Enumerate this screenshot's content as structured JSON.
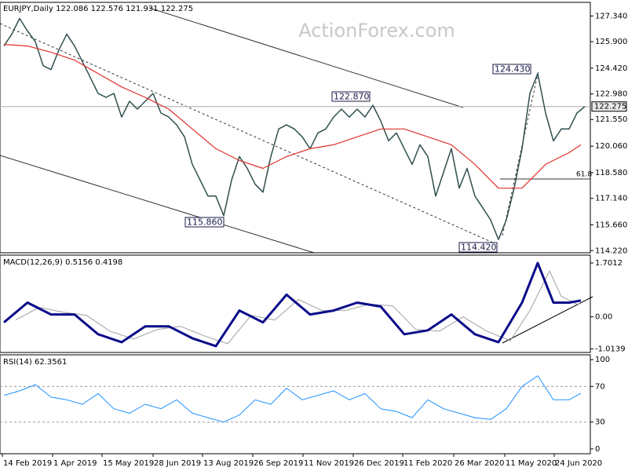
{
  "header": "EURJPY,Daily  122.086 122.576 121.931 122.275",
  "watermark": "ActionForex.com",
  "annotations": [
    "115.860",
    "122.870",
    "124.430",
    "114.420",
    "61.8"
  ],
  "x_axis": {
    "xlim": [
      -0.5,
      74.7
    ],
    "xticks": [
      {
        "value": -0.2,
        "label": "14 Feb 2019"
      },
      {
        "value": 6.2,
        "label": "1 Apr 2019"
      },
      {
        "value": 12.5,
        "label": "15 May 2019"
      },
      {
        "value": 19,
        "label": "28 Jun 2019"
      },
      {
        "value": 25.3,
        "label": "13 Aug 2019"
      },
      {
        "value": 31.7,
        "label": "26 Sep 2019"
      },
      {
        "value": 38.1,
        "label": "11 Nov 2019"
      },
      {
        "value": 44.5,
        "label": "26 Dec 2019"
      },
      {
        "value": 50.8,
        "label": "11 Feb 2020"
      },
      {
        "value": 57.3,
        "label": "26 Mar 2020"
      },
      {
        "value": 63.8,
        "label": "11 May 2020"
      },
      {
        "value": 70.1,
        "label": "24 Jun 2020"
      }
    ]
  },
  "chart_data": [
    {
      "type": "line",
      "panel": "price",
      "x": [
        0,
        1,
        2,
        3,
        4,
        5,
        6,
        7,
        8,
        9,
        10,
        11,
        12,
        13,
        14,
        15,
        16,
        17,
        18,
        19,
        20,
        21,
        22,
        23,
        24,
        25,
        26,
        27,
        28,
        29,
        30,
        31,
        32,
        33,
        34,
        35,
        36,
        37,
        38,
        39,
        40,
        41,
        42,
        43,
        44,
        45,
        46,
        47,
        48,
        49,
        50,
        51,
        52,
        53,
        54,
        55,
        56,
        57,
        58,
        59,
        60,
        61,
        62,
        63,
        64,
        65,
        66,
        67,
        68,
        69,
        70,
        71,
        72,
        73,
        74
      ],
      "ylim": [
        114.1,
        128.1
      ],
      "yticks": [
        {
          "value": 127.34,
          "label": "127.340"
        },
        {
          "value": 125.9,
          "label": "125.900"
        },
        {
          "value": 124.42,
          "label": "124.420"
        },
        {
          "value": 122.98,
          "label": "122.980"
        },
        {
          "value": 121.55,
          "label": "121.550"
        },
        {
          "value": 120.06,
          "label": "120.060"
        },
        {
          "value": 118.58,
          "label": "118.580"
        },
        {
          "value": 117.14,
          "label": "117.140"
        },
        {
          "value": 115.66,
          "label": "115.660"
        },
        {
          "value": 114.22,
          "label": "114.220"
        }
      ],
      "last_price": 122.275,
      "series": [
        {
          "color": "#2f4f4f",
          "width": 1.5,
          "values": [
            125.66,
            126.32,
            127.2,
            126.5,
            125.9,
            124.56,
            124.34,
            125.44,
            126.32,
            125.66,
            124.78,
            123.9,
            123.01,
            122.79,
            123.01,
            121.69,
            122.57,
            122.13,
            122.57,
            123.01,
            121.91,
            121.69,
            121.25,
            120.58,
            119.04,
            118.16,
            117.27,
            117.27,
            116.17,
            118.16,
            119.48,
            118.82,
            117.93,
            117.49,
            119.48,
            121.02,
            121.25,
            121.02,
            120.58,
            119.92,
            120.8,
            121.02,
            121.69,
            122.13,
            121.69,
            122.13,
            121.69,
            122.35,
            121.47,
            120.36,
            120.8,
            119.92,
            119.04,
            120.14,
            119.48,
            117.27,
            118.6,
            119.92,
            117.71,
            118.82,
            117.27,
            116.61,
            115.94,
            114.84,
            115.94,
            117.71,
            119.92,
            123.01,
            124.12,
            121.91,
            120.36,
            121.02,
            121.02,
            121.91,
            122.275
          ]
        },
        {
          "color": "#e0302a",
          "width": 1.2,
          "x": [
            0,
            3,
            6,
            9,
            12,
            15,
            18,
            21,
            24,
            27,
            30,
            33,
            36,
            39,
            42,
            45,
            48,
            51,
            54,
            57,
            60,
            63,
            66,
            69,
            72,
            73.5
          ],
          "values": [
            125.75,
            125.66,
            125.31,
            124.87,
            124.12,
            123.37,
            122.79,
            122.13,
            121.02,
            119.92,
            119.26,
            118.82,
            119.48,
            119.92,
            120.14,
            120.58,
            121.02,
            121.02,
            120.58,
            120.14,
            119.04,
            117.71,
            117.71,
            119.04,
            119.7,
            120.14
          ]
        }
      ]
    },
    {
      "type": "line",
      "panel": "macd",
      "title": "MACD(12,26,9) 0.5156 0.4198",
      "ylim": [
        -1.125,
        1.95
      ],
      "yticks": [
        {
          "value": 1.7012,
          "label": "1.7012"
        },
        {
          "value": 0,
          "label": "0.00"
        },
        {
          "value": -1.0139,
          "label": "-1.0139"
        }
      ],
      "series": [
        {
          "color": "#a0a0a0",
          "width": 1,
          "x": [
            1.5,
            4.5,
            7.5,
            10.5,
            13.5,
            16.5,
            19.5,
            22.5,
            25.5,
            28.5,
            31.5,
            34.5,
            37.5,
            40.5,
            43.5,
            46.5,
            49.5,
            52.5,
            55.5,
            58.5,
            61.5,
            64.5,
            67,
            69.5,
            71,
            73,
            73.5
          ],
          "values": [
            -0.1,
            0.3,
            0.15,
            0.05,
            -0.45,
            -0.7,
            -0.4,
            -0.3,
            -0.6,
            -0.85,
            0.05,
            -0.1,
            0.55,
            0.2,
            0.2,
            0.4,
            0.35,
            -0.4,
            -0.45,
            0.0,
            -0.45,
            -0.75,
            0.2,
            1.45,
            0.65,
            0.4,
            0.4198
          ]
        },
        {
          "color": "#0b0b8a",
          "width": 3,
          "x": [
            0,
            3,
            6,
            9,
            12,
            15,
            18,
            21,
            24,
            27,
            30,
            33,
            36,
            39,
            42,
            45,
            48,
            51,
            54,
            57,
            60,
            63,
            66,
            68,
            70,
            72,
            73.5
          ],
          "values": [
            -0.175,
            0.45,
            0.075,
            0.075,
            -0.55,
            -0.8,
            -0.3,
            -0.3,
            -0.675,
            -0.925,
            0.2,
            -0.175,
            0.7,
            0.075,
            0.2,
            0.45,
            0.325,
            -0.55,
            -0.425,
            0.075,
            -0.55,
            -0.8,
            0.45,
            1.7,
            0.45,
            0.45,
            0.5156
          ]
        }
      ]
    },
    {
      "type": "line",
      "panel": "rsi",
      "title": "RSI(14) 62.3561",
      "ylim": [
        -5.4,
        105.4
      ],
      "yticks": [
        0,
        30,
        70,
        100
      ],
      "levels": [
        30,
        70
      ],
      "series": [
        {
          "color": "#1e90ff",
          "width": 1,
          "x": [
            0,
            2,
            4,
            6,
            8,
            10,
            12,
            14,
            16,
            18,
            20,
            22,
            24,
            26,
            28,
            30,
            32,
            34,
            36,
            38,
            40,
            42,
            44,
            46,
            48,
            50,
            52,
            54,
            56,
            58,
            60,
            62,
            64,
            66,
            68,
            70,
            72,
            73.5
          ],
          "values": [
            60,
            65,
            72,
            58,
            55,
            50,
            62,
            45,
            40,
            50,
            45,
            55,
            40,
            35,
            30,
            38,
            55,
            50,
            68,
            55,
            60,
            65,
            55,
            62,
            45,
            42,
            35,
            55,
            45,
            40,
            35,
            33,
            45,
            70,
            82,
            55,
            55,
            62.3561
          ]
        }
      ]
    }
  ]
}
